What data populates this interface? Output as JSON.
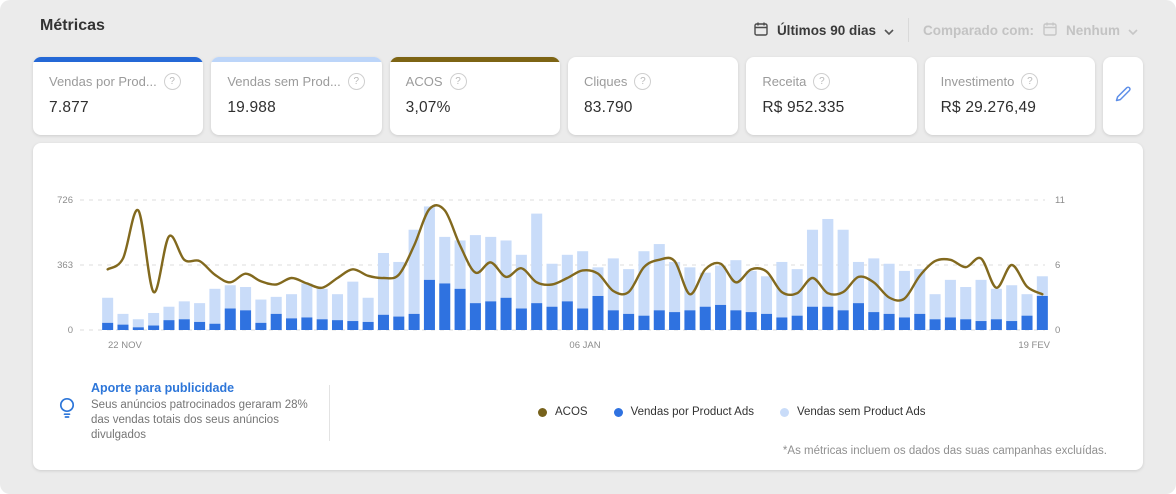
{
  "header": {
    "title": "Métricas"
  },
  "period": {
    "label": "Últimos 90 dias",
    "icon": "calendar-icon"
  },
  "compare": {
    "prefix": "Comparado com:",
    "value": "Nenhum",
    "icon": "calendar-icon"
  },
  "cards": [
    {
      "label": "Vendas por Prod...",
      "value": "7.877",
      "accent": "#2468d6"
    },
    {
      "label": "Vendas sem Prod...",
      "value": "19.988",
      "accent": "#bcd5f9"
    },
    {
      "label": "ACOS",
      "value": "3,07%",
      "accent": "#7d6414"
    },
    {
      "label": "Cliques",
      "value": "83.790",
      "accent": ""
    },
    {
      "label": "Receita",
      "value": "R$ 952.335",
      "accent": ""
    },
    {
      "label": "Investimento",
      "value": "R$ 29.276,49",
      "accent": ""
    }
  ],
  "insight": {
    "title": "Aporte para publicidade",
    "body": "Seus anúncios patrocinados geraram 28% das vendas totais dos seus anúncios divulgados"
  },
  "legend": [
    {
      "label": "ACOS",
      "color": "#77621c"
    },
    {
      "label": "Vendas por Product Ads",
      "color": "#2f72e0"
    },
    {
      "label": "Vendas sem Product Ads",
      "color": "#c9dcf9"
    }
  ],
  "footnote": "*As métricas incluem os dados das suas campanhas excluídas.",
  "chart_data": {
    "type": "bar",
    "combo": "stacked-bar+line",
    "title": "",
    "x_ticks": [
      "22 NOV",
      "06 JAN",
      "19 FEV"
    ],
    "left_axis": {
      "ticks": [
        0,
        363,
        726
      ],
      "max": 726
    },
    "right_axis": {
      "ticks": [
        0,
        6,
        11
      ],
      "max": 11
    },
    "grid": "dashed-horizontal",
    "legend_position": "bottom",
    "series": [
      {
        "name": "Vendas por Product Ads",
        "type": "bar",
        "color": "#2f72e0",
        "values": [
          40,
          30,
          15,
          25,
          55,
          60,
          45,
          35,
          120,
          110,
          40,
          90,
          65,
          70,
          60,
          55,
          50,
          45,
          85,
          75,
          90,
          280,
          260,
          230,
          150,
          160,
          180,
          120,
          150,
          130,
          160,
          120,
          190,
          110,
          90,
          80,
          110,
          100,
          110,
          130,
          140,
          110,
          100,
          90,
          70,
          80,
          130,
          130,
          110,
          150,
          100,
          90,
          70,
          90,
          60,
          70,
          60,
          50,
          60,
          50,
          80,
          190
        ]
      },
      {
        "name": "Vendas sem Product Ads",
        "type": "bar",
        "stack": "on-top",
        "color": "#c9dcf9",
        "values": [
          140,
          60,
          45,
          70,
          75,
          100,
          105,
          195,
          130,
          130,
          130,
          95,
          135,
          190,
          170,
          145,
          220,
          135,
          345,
          305,
          470,
          410,
          260,
          270,
          380,
          360,
          320,
          300,
          500,
          240,
          260,
          320,
          160,
          290,
          250,
          360,
          370,
          280,
          240,
          190,
          220,
          280,
          230,
          210,
          310,
          260,
          430,
          490,
          450,
          230,
          300,
          280,
          260,
          250,
          140,
          210,
          180,
          230,
          170,
          200,
          120,
          110
        ]
      },
      {
        "name": "ACOS",
        "type": "line",
        "axis": "right",
        "color": "#82691e",
        "values": [
          5.6,
          6.5,
          10.2,
          3.5,
          8.2,
          6.4,
          6.3,
          5.1,
          4.4,
          5.2,
          4.5,
          4.2,
          4.8,
          4.3,
          3.9,
          4.8,
          5.6,
          5.0,
          4.8,
          5.1,
          7.5,
          10.3,
          10.2,
          7.5,
          5.3,
          6.2,
          4.9,
          5.7,
          4.4,
          4.2,
          4.8,
          5.5,
          5.2,
          3.6,
          3.5,
          5.8,
          6.4,
          6.3,
          3.3,
          5.6,
          6.1,
          4.4,
          5.6,
          5.4,
          3.5,
          3.4,
          4.8,
          3.4,
          3.5,
          4.9,
          4.4,
          3.0,
          2.9,
          5.0,
          6.3,
          6.4,
          5.8,
          6.5,
          3.9,
          6.0,
          4.0,
          3.3
        ]
      }
    ]
  }
}
